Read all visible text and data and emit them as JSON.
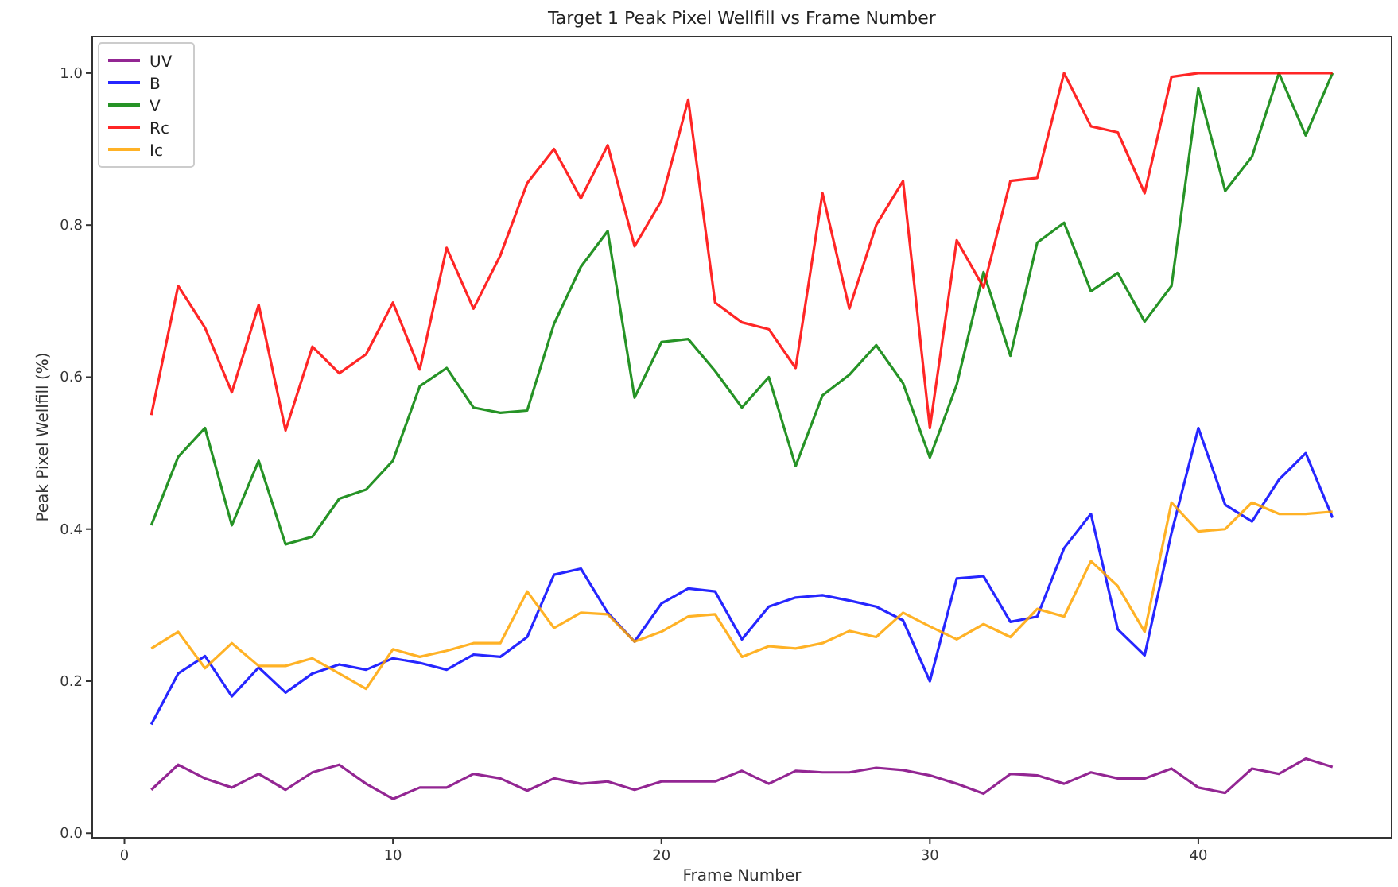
{
  "chart_data": {
    "type": "line",
    "title": "Target 1 Peak Pixel Wellfill vs Frame Number",
    "xlabel": "Frame Number",
    "ylabel": "Peak Pixel Wellfill (%)",
    "x": [
      1,
      2,
      3,
      4,
      5,
      6,
      7,
      8,
      9,
      10,
      11,
      12,
      13,
      14,
      15,
      16,
      17,
      18,
      19,
      20,
      21,
      22,
      23,
      24,
      25,
      26,
      27,
      28,
      29,
      30,
      31,
      32,
      33,
      34,
      35,
      36,
      37,
      38,
      39,
      40,
      41,
      42,
      43,
      44,
      45
    ],
    "xlim": [
      -1.2,
      47.2
    ],
    "xticks": [
      0,
      10,
      20,
      30,
      40
    ],
    "ylim": [
      -0.006,
      1.048
    ],
    "yticks": [
      {
        "value": 0,
        "label": "0.0"
      },
      {
        "value": 0.2,
        "label": "0.2"
      },
      {
        "value": 0.4,
        "label": "0.4"
      },
      {
        "value": 0.6,
        "label": "0.6"
      },
      {
        "value": 0.8,
        "label": "0.8"
      },
      {
        "value": 1,
        "label": "1.0"
      }
    ],
    "legend": "top left",
    "grid": false,
    "marker": "none",
    "line_style": "solid",
    "series": [
      {
        "name": "UV",
        "color": "#800080",
        "values": [
          0.057,
          0.09,
          0.072,
          0.06,
          0.078,
          0.057,
          0.08,
          0.09,
          0.065,
          0.045,
          0.06,
          0.06,
          0.078,
          0.072,
          0.056,
          0.072,
          0.065,
          0.068,
          0.057,
          0.068,
          0.068,
          0.068,
          0.082,
          0.065,
          0.082,
          0.08,
          0.08,
          0.086,
          0.083,
          0.076,
          0.065,
          0.052,
          0.078,
          0.076,
          0.065,
          0.08,
          0.072,
          0.072,
          0.085,
          0.06,
          0.053,
          0.085,
          0.078,
          0.098,
          0.087
        ]
      },
      {
        "name": "B",
        "color": "#0000ff",
        "values": [
          0.143,
          0.21,
          0.233,
          0.18,
          0.218,
          0.185,
          0.21,
          0.222,
          0.215,
          0.23,
          0.224,
          0.215,
          0.235,
          0.232,
          0.258,
          0.34,
          0.348,
          0.29,
          0.252,
          0.302,
          0.322,
          0.318,
          0.255,
          0.298,
          0.31,
          0.313,
          0.306,
          0.298,
          0.28,
          0.2,
          0.335,
          0.338,
          0.278,
          0.285,
          0.375,
          0.42,
          0.268,
          0.234,
          0.395,
          0.533,
          0.432,
          0.41,
          0.465,
          0.5,
          0.415
        ]
      },
      {
        "name": "V",
        "color": "#008000",
        "values": [
          0.405,
          0.495,
          0.533,
          0.405,
          0.49,
          0.38,
          0.39,
          0.44,
          0.452,
          0.49,
          0.588,
          0.612,
          0.56,
          0.553,
          0.556,
          0.67,
          0.745,
          0.792,
          0.573,
          0.646,
          0.65,
          0.608,
          0.56,
          0.6,
          0.483,
          0.576,
          0.603,
          0.642,
          0.592,
          0.494,
          0.59,
          0.738,
          0.628,
          0.777,
          0.803,
          0.713,
          0.737,
          0.673,
          0.72,
          0.98,
          0.845,
          0.89,
          1.0,
          0.918,
          1.0
        ]
      },
      {
        "name": "Rc",
        "color": "#ff0000",
        "values": [
          0.55,
          0.72,
          0.665,
          0.58,
          0.695,
          0.53,
          0.64,
          0.605,
          0.63,
          0.698,
          0.61,
          0.77,
          0.69,
          0.76,
          0.855,
          0.9,
          0.835,
          0.905,
          0.772,
          0.832,
          0.965,
          0.698,
          0.672,
          0.663,
          0.612,
          0.842,
          0.69,
          0.8,
          0.858,
          0.533,
          0.78,
          0.718,
          0.858,
          0.862,
          1.0,
          0.93,
          0.922,
          0.842,
          0.995,
          1.0,
          1.0,
          1.0,
          1.0,
          1.0,
          1.0
        ]
      },
      {
        "name": "Ic",
        "color": "#ffa500",
        "values": [
          0.243,
          0.265,
          0.217,
          0.25,
          0.22,
          0.22,
          0.23,
          0.21,
          0.19,
          0.242,
          0.232,
          0.24,
          0.25,
          0.25,
          0.318,
          0.27,
          0.29,
          0.288,
          0.252,
          0.265,
          0.285,
          0.288,
          0.232,
          0.246,
          0.243,
          0.25,
          0.266,
          0.258,
          0.29,
          0.272,
          0.255,
          0.275,
          0.258,
          0.295,
          0.285,
          0.358,
          0.325,
          0.265,
          0.435,
          0.397,
          0.4,
          0.435,
          0.42,
          0.42,
          0.423
        ]
      }
    ]
  }
}
